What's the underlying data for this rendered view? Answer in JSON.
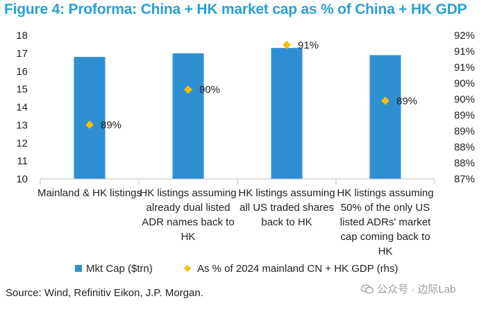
{
  "chart_data": {
    "type": "bar",
    "title": "Figure 4: Proforma: China + HK market cap as % of China + HK GDP",
    "categories": [
      [
        "Mainland & HK listings"
      ],
      [
        "HK listings assuming",
        "already dual listed",
        "ADR names back to",
        "HK"
      ],
      [
        "HK listings assuming",
        "all US traded shares",
        "back to HK"
      ],
      [
        "HK listings assuming",
        "50% of the only US",
        "listed ADRs' market",
        "cap coming back to",
        "HK"
      ]
    ],
    "series": [
      {
        "name": "Mkt Cap ($trn)",
        "axis": "left",
        "color": "#2f8fd3",
        "values": [
          16.8,
          17.0,
          17.3,
          16.9
        ]
      },
      {
        "name": "As % of 2024 mainland CN + HK GDP (rhs)",
        "axis": "right",
        "color": "#f5c000",
        "marker": "diamond",
        "values": [
          88.7,
          89.8,
          91.2,
          89.45
        ],
        "data_labels": [
          "89%",
          "90%",
          "91%",
          "89%"
        ]
      }
    ],
    "y_left": {
      "ylim": [
        10,
        18
      ],
      "ticks": [
        10,
        11,
        12,
        13,
        14,
        15,
        16,
        17,
        18
      ],
      "tick_labels": [
        "10",
        "11",
        "12",
        "13",
        "14",
        "15",
        "16",
        "17",
        "18"
      ]
    },
    "y_right": {
      "ylim": [
        87,
        91.5
      ],
      "ticks": [
        87,
        87.5,
        88,
        88.5,
        89,
        89.5,
        90,
        90.5,
        91,
        91.5
      ],
      "tick_labels": [
        "87%",
        "88%",
        "88%",
        "89%",
        "89%",
        "90%",
        "90%",
        "91%",
        "91%",
        "92%"
      ]
    },
    "legend": {
      "placement": "bottom"
    }
  },
  "source": "Source: Wind, Refinitiv Eikon, J.P. Morgan.",
  "watermark": "公众号 · 边际Lab"
}
